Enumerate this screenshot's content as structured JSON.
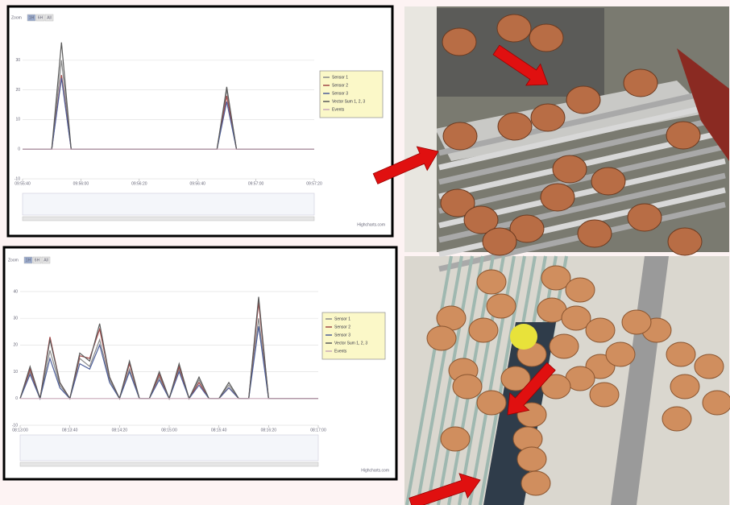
{
  "chart_data": [
    {
      "type": "line",
      "zoom_label": "Zoom",
      "zoom_buttons": [
        "1H",
        "6H",
        "All"
      ],
      "credits": "Highcharts.com",
      "categories": [
        "09:55:40",
        null,
        null,
        null,
        null,
        null,
        "09:56:00",
        null,
        null,
        null,
        null,
        null,
        "09:56:20",
        null,
        null,
        null,
        null,
        null,
        "09:56:40",
        null,
        null,
        null,
        null,
        null,
        "09:57:00",
        null,
        null,
        null,
        null,
        null,
        "09:57:20"
      ],
      "ylim": [
        -10,
        40
      ],
      "yticks": [
        -10,
        0,
        10,
        20,
        30
      ],
      "grid": true,
      "legend": "right",
      "series": [
        {
          "name": "Sensor 1",
          "color": "#8a8a8a",
          "values": [
            0,
            0,
            0,
            0,
            30,
            0,
            0,
            0,
            0,
            0,
            0,
            0,
            0,
            0,
            0,
            0,
            0,
            0,
            0,
            0,
            0,
            20,
            0,
            0,
            0,
            0,
            0,
            0,
            0,
            0,
            0
          ]
        },
        {
          "name": "Sensor 2",
          "color": "#a04848",
          "values": [
            0,
            0,
            0,
            0,
            25,
            0,
            0,
            0,
            0,
            0,
            0,
            0,
            0,
            0,
            0,
            0,
            0,
            0,
            0,
            0,
            0,
            18,
            0,
            0,
            0,
            0,
            0,
            0,
            0,
            0,
            0
          ]
        },
        {
          "name": "Sensor 3",
          "color": "#4d5e99",
          "values": [
            0,
            0,
            0,
            0,
            24,
            0,
            0,
            0,
            0,
            0,
            0,
            0,
            0,
            0,
            0,
            0,
            0,
            0,
            0,
            0,
            0,
            16,
            0,
            0,
            0,
            0,
            0,
            0,
            0,
            0,
            0
          ]
        },
        {
          "name": "Vector Sum 1, 2, 3",
          "color": "#5a5a5a",
          "values": [
            0,
            0,
            0,
            0,
            36,
            0,
            0,
            0,
            0,
            0,
            0,
            0,
            0,
            0,
            0,
            0,
            0,
            0,
            0,
            0,
            0,
            21,
            0,
            0,
            0,
            0,
            0,
            0,
            0,
            0,
            0
          ]
        },
        {
          "name": "Events",
          "color": "#c8a8b8",
          "values": [
            0,
            0,
            0,
            0,
            0,
            0,
            0,
            0,
            0,
            0,
            0,
            0,
            0,
            0,
            0,
            0,
            0,
            0,
            0,
            0,
            0,
            0,
            0,
            0,
            0,
            0,
            0,
            0,
            0,
            0,
            0
          ]
        }
      ]
    },
    {
      "type": "line",
      "zoom_label": "Zoom",
      "zoom_buttons": [
        "1H",
        "6H",
        "All"
      ],
      "credits": "Highcharts.com",
      "categories": [
        "08:13:00",
        null,
        null,
        null,
        null,
        "08:13:40",
        null,
        null,
        null,
        null,
        "08:14:20",
        null,
        null,
        null,
        null,
        "08:15:00",
        null,
        null,
        null,
        null,
        "08:15:40",
        null,
        null,
        null,
        null,
        "08:16:20",
        null,
        null,
        null,
        null,
        "08:17:00"
      ],
      "ylim": [
        -10,
        40
      ],
      "yticks": [
        -10,
        0,
        10,
        20,
        30,
        40
      ],
      "grid": true,
      "legend": "right",
      "series": [
        {
          "name": "Sensor 1",
          "color": "#8a8a8a",
          "values": [
            0,
            10,
            0,
            18,
            5,
            0,
            15,
            12,
            22,
            7,
            0,
            11,
            0,
            0,
            8,
            0,
            11,
            0,
            7,
            0,
            0,
            5,
            0,
            0,
            30,
            0,
            0,
            0,
            0,
            0,
            0
          ]
        },
        {
          "name": "Sensor 2",
          "color": "#a04848",
          "values": [
            0,
            11,
            0,
            23,
            6,
            0,
            16,
            15,
            26,
            8,
            0,
            13,
            0,
            0,
            9,
            0,
            12,
            0,
            6,
            0,
            0,
            4,
            0,
            0,
            36,
            0,
            0,
            0,
            0,
            0,
            0
          ]
        },
        {
          "name": "Sensor 3",
          "color": "#4d5e99",
          "values": [
            0,
            9,
            0,
            15,
            4,
            0,
            13,
            11,
            20,
            6,
            0,
            10,
            0,
            0,
            7,
            0,
            10,
            0,
            5,
            0,
            0,
            4,
            0,
            0,
            27,
            0,
            0,
            0,
            0,
            0,
            0
          ]
        },
        {
          "name": "Vector Sum 1, 2, 3",
          "color": "#5a5a5a",
          "values": [
            0,
            12,
            0,
            22,
            6,
            0,
            17,
            14,
            28,
            8,
            0,
            14,
            0,
            0,
            10,
            0,
            13,
            0,
            8,
            0,
            0,
            6,
            0,
            0,
            38,
            0,
            0,
            0,
            0,
            0,
            0
          ]
        },
        {
          "name": "Events",
          "color": "#c8a8b8",
          "values": [
            0,
            0,
            0,
            0,
            0,
            0,
            0,
            0,
            0,
            0,
            0,
            0,
            0,
            0,
            0,
            0,
            0,
            0,
            0,
            0,
            0,
            0,
            0,
            0,
            0,
            0,
            0,
            0,
            0,
            0,
            0
          ]
        }
      ]
    }
  ]
}
